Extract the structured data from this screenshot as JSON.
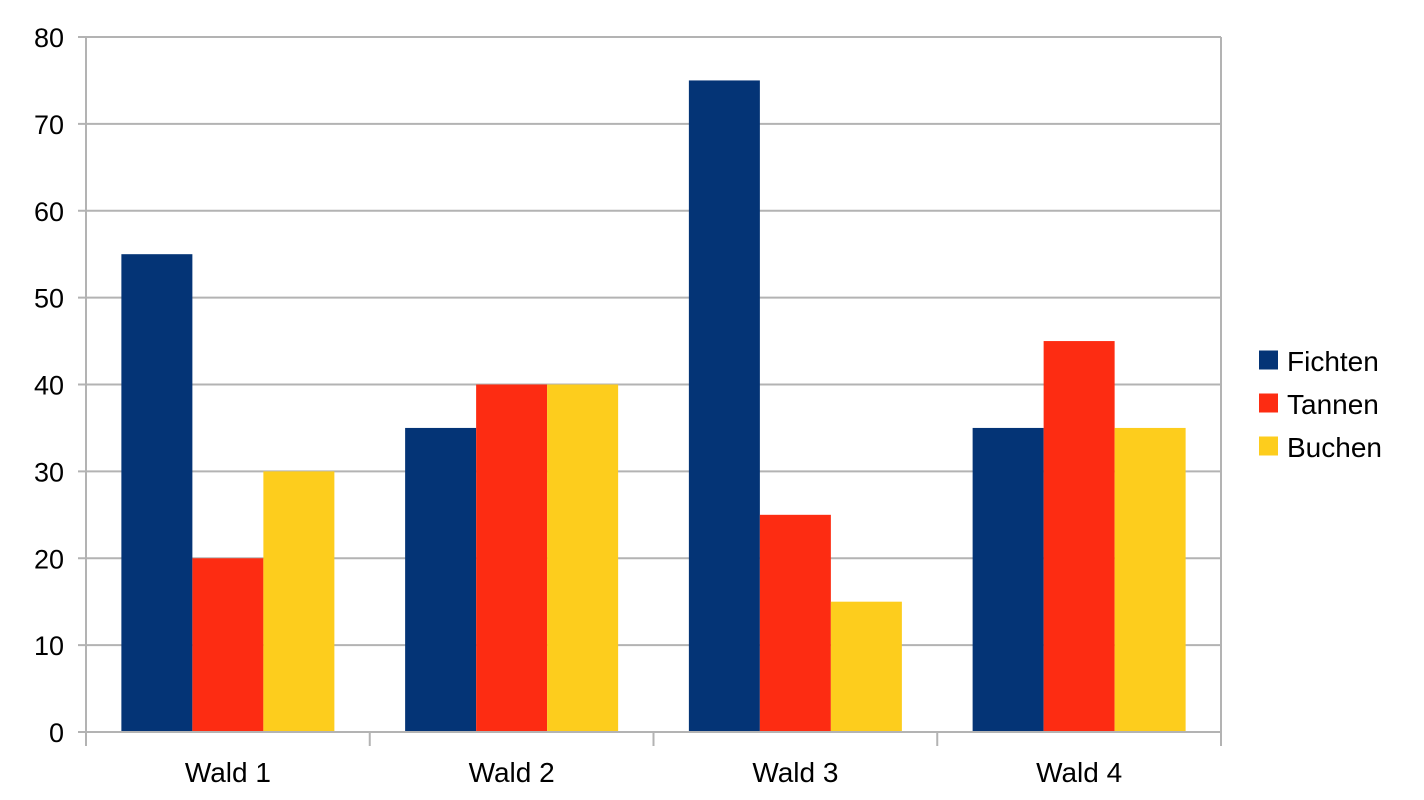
{
  "chart_data": {
    "type": "bar",
    "title": "",
    "xlabel": "",
    "ylabel": "",
    "categories": [
      "Wald 1",
      "Wald 2",
      "Wald 3",
      "Wald 4"
    ],
    "series": [
      {
        "name": "Fichten",
        "color": "#043476",
        "values": [
          55,
          35,
          75,
          35
        ]
      },
      {
        "name": "Tannen",
        "color": "#fd2c12",
        "values": [
          20,
          40,
          25,
          45
        ]
      },
      {
        "name": "Buchen",
        "color": "#fdcd1d",
        "values": [
          30,
          40,
          15,
          35
        ]
      }
    ],
    "ylim": [
      0,
      80
    ],
    "yticks": [
      "0",
      "10",
      "20",
      "30",
      "40",
      "50",
      "60",
      "70",
      "80"
    ],
    "grid": true,
    "legend_position": "right"
  }
}
